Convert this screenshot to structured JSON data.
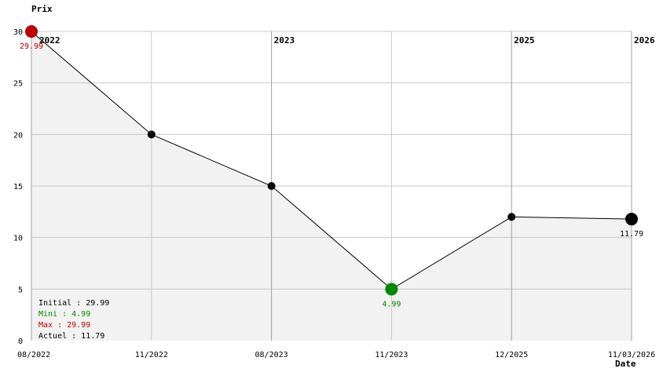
{
  "chart_data": {
    "type": "line",
    "ylabel": "Prix",
    "xlabel": "Date",
    "categories": [
      "08/2022",
      "11/2022",
      "08/2023",
      "11/2023",
      "12/2025",
      "11/03/2026"
    ],
    "values": [
      29.99,
      20,
      15,
      4.99,
      12,
      11.79
    ],
    "ylim": [
      0,
      30
    ],
    "yticks": [
      0,
      5,
      10,
      15,
      20,
      25,
      30
    ],
    "year_markers": [
      {
        "label": "2022",
        "index": 0
      },
      {
        "label": "2023",
        "index": 2
      },
      {
        "label": "2025",
        "index": 4
      },
      {
        "label": "2026",
        "index": 5
      }
    ],
    "point_labels": [
      {
        "index": 0,
        "text": "29.99",
        "color": "#bb0000"
      },
      {
        "index": 3,
        "text": "4.99",
        "color": "#008800"
      },
      {
        "index": 5,
        "text": "11.79",
        "color": "#000000"
      }
    ],
    "stats": [
      {
        "text": "Initial : 29.99",
        "color": "#000000"
      },
      {
        "text": "Mini : 4.99",
        "color": "#008800"
      },
      {
        "text": "Max : 29.99",
        "color": "#bb0000"
      },
      {
        "text": "Actuel : 11.79",
        "color": "#000000"
      }
    ],
    "grid": true,
    "colors": {
      "max": "#bb0000",
      "min": "#008800",
      "point": "#000000",
      "fill": "#f2f2f2",
      "line": "#000000"
    }
  }
}
